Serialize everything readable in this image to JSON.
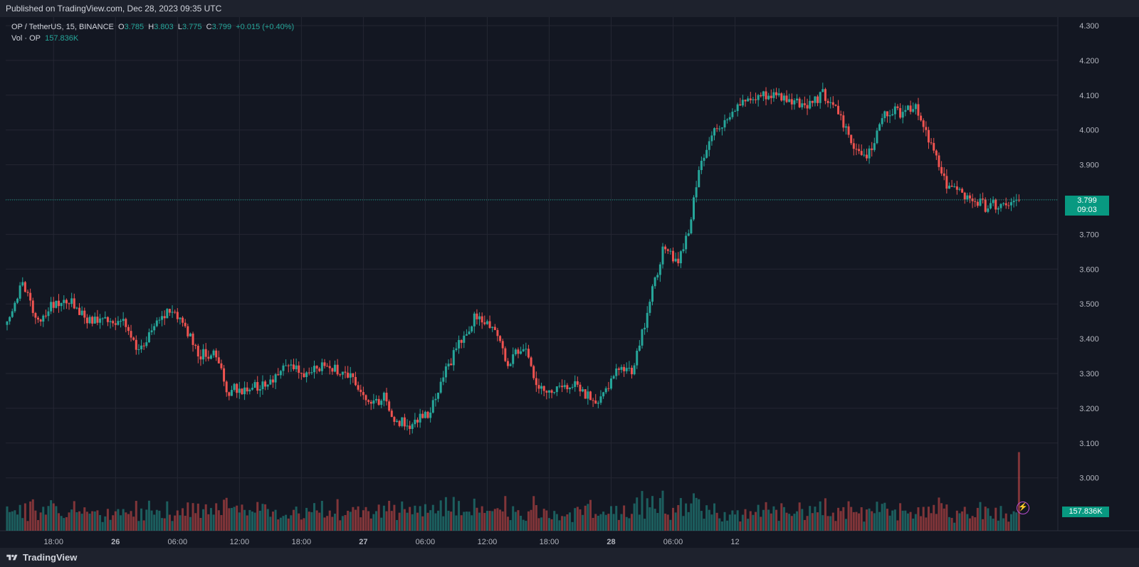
{
  "header": {
    "published": "Published on TradingView.com, Dec 28, 2023 09:35 UTC"
  },
  "legend": {
    "symbol": "OP / TetherUS, 15, BINANCE",
    "o_label": "O",
    "o": "3.785",
    "h_label": "H",
    "h": "3.803",
    "l_label": "L",
    "l": "3.775",
    "c_label": "C",
    "c": "3.799",
    "change": "+0.015 (+0.40%)",
    "vol_label": "Vol · OP",
    "vol": "157.836K"
  },
  "last_price": {
    "price": "3.799",
    "countdown": "09:03"
  },
  "volume_tag": "157.836K",
  "footer": {
    "brand": "TradingView"
  },
  "colors": {
    "up": "#26a69a",
    "down": "#ef5350",
    "background": "#131722",
    "grid": "#242733",
    "price_line": "#089981"
  },
  "chart_data": {
    "type": "candlestick",
    "ylim": [
      2.9,
      4.3
    ],
    "y_ticks": [
      "4.300",
      "4.200",
      "4.100",
      "4.000",
      "3.900",
      "3.800",
      "3.700",
      "3.600",
      "3.500",
      "3.400",
      "3.300",
      "3.200",
      "3.100",
      "3.000"
    ],
    "x_ticks": [
      "18:00",
      "26",
      "06:00",
      "12:00",
      "18:00",
      "27",
      "06:00",
      "12:00",
      "18:00",
      "28",
      "06:00",
      "12"
    ],
    "bar_interval_minutes": 15,
    "bars_per_tick": 24,
    "first_tick_bar": 18,
    "key_closes": [
      [
        0,
        3.45
      ],
      [
        6,
        3.56
      ],
      [
        12,
        3.45
      ],
      [
        18,
        3.5
      ],
      [
        24,
        3.51
      ],
      [
        32,
        3.45
      ],
      [
        40,
        3.46
      ],
      [
        46,
        3.44
      ],
      [
        50,
        3.37
      ],
      [
        56,
        3.41
      ],
      [
        62,
        3.49
      ],
      [
        68,
        3.45
      ],
      [
        74,
        3.35
      ],
      [
        80,
        3.36
      ],
      [
        86,
        3.25
      ],
      [
        92,
        3.26
      ],
      [
        98,
        3.27
      ],
      [
        104,
        3.29
      ],
      [
        110,
        3.33
      ],
      [
        116,
        3.3
      ],
      [
        122,
        3.32
      ],
      [
        128,
        3.3
      ],
      [
        134,
        3.28
      ],
      [
        140,
        3.21
      ],
      [
        146,
        3.23
      ],
      [
        150,
        3.17
      ],
      [
        156,
        3.15
      ],
      [
        164,
        3.19
      ],
      [
        170,
        3.32
      ],
      [
        176,
        3.4
      ],
      [
        182,
        3.47
      ],
      [
        188,
        3.43
      ],
      [
        194,
        3.33
      ],
      [
        200,
        3.38
      ],
      [
        206,
        3.25
      ],
      [
        212,
        3.25
      ],
      [
        218,
        3.27
      ],
      [
        224,
        3.24
      ],
      [
        230,
        3.22
      ],
      [
        236,
        3.32
      ],
      [
        242,
        3.31
      ],
      [
        248,
        3.48
      ],
      [
        254,
        3.65
      ],
      [
        260,
        3.63
      ],
      [
        264,
        3.7
      ],
      [
        268,
        3.9
      ],
      [
        274,
        4.0
      ],
      [
        280,
        4.05
      ],
      [
        286,
        4.08
      ],
      [
        292,
        4.1
      ],
      [
        298,
        4.1
      ],
      [
        304,
        4.09
      ],
      [
        310,
        4.07
      ],
      [
        316,
        4.1
      ],
      [
        322,
        4.05
      ],
      [
        328,
        3.95
      ],
      [
        334,
        3.93
      ],
      [
        340,
        4.05
      ],
      [
        346,
        4.06
      ],
      [
        352,
        4.07
      ],
      [
        356,
        4.0
      ],
      [
        362,
        3.87
      ],
      [
        368,
        3.82
      ],
      [
        374,
        3.8
      ],
      [
        380,
        3.78
      ],
      [
        386,
        3.78
      ],
      [
        392,
        3.79
      ]
    ],
    "volume_scale_max": 250000,
    "last_volume": 157836
  }
}
